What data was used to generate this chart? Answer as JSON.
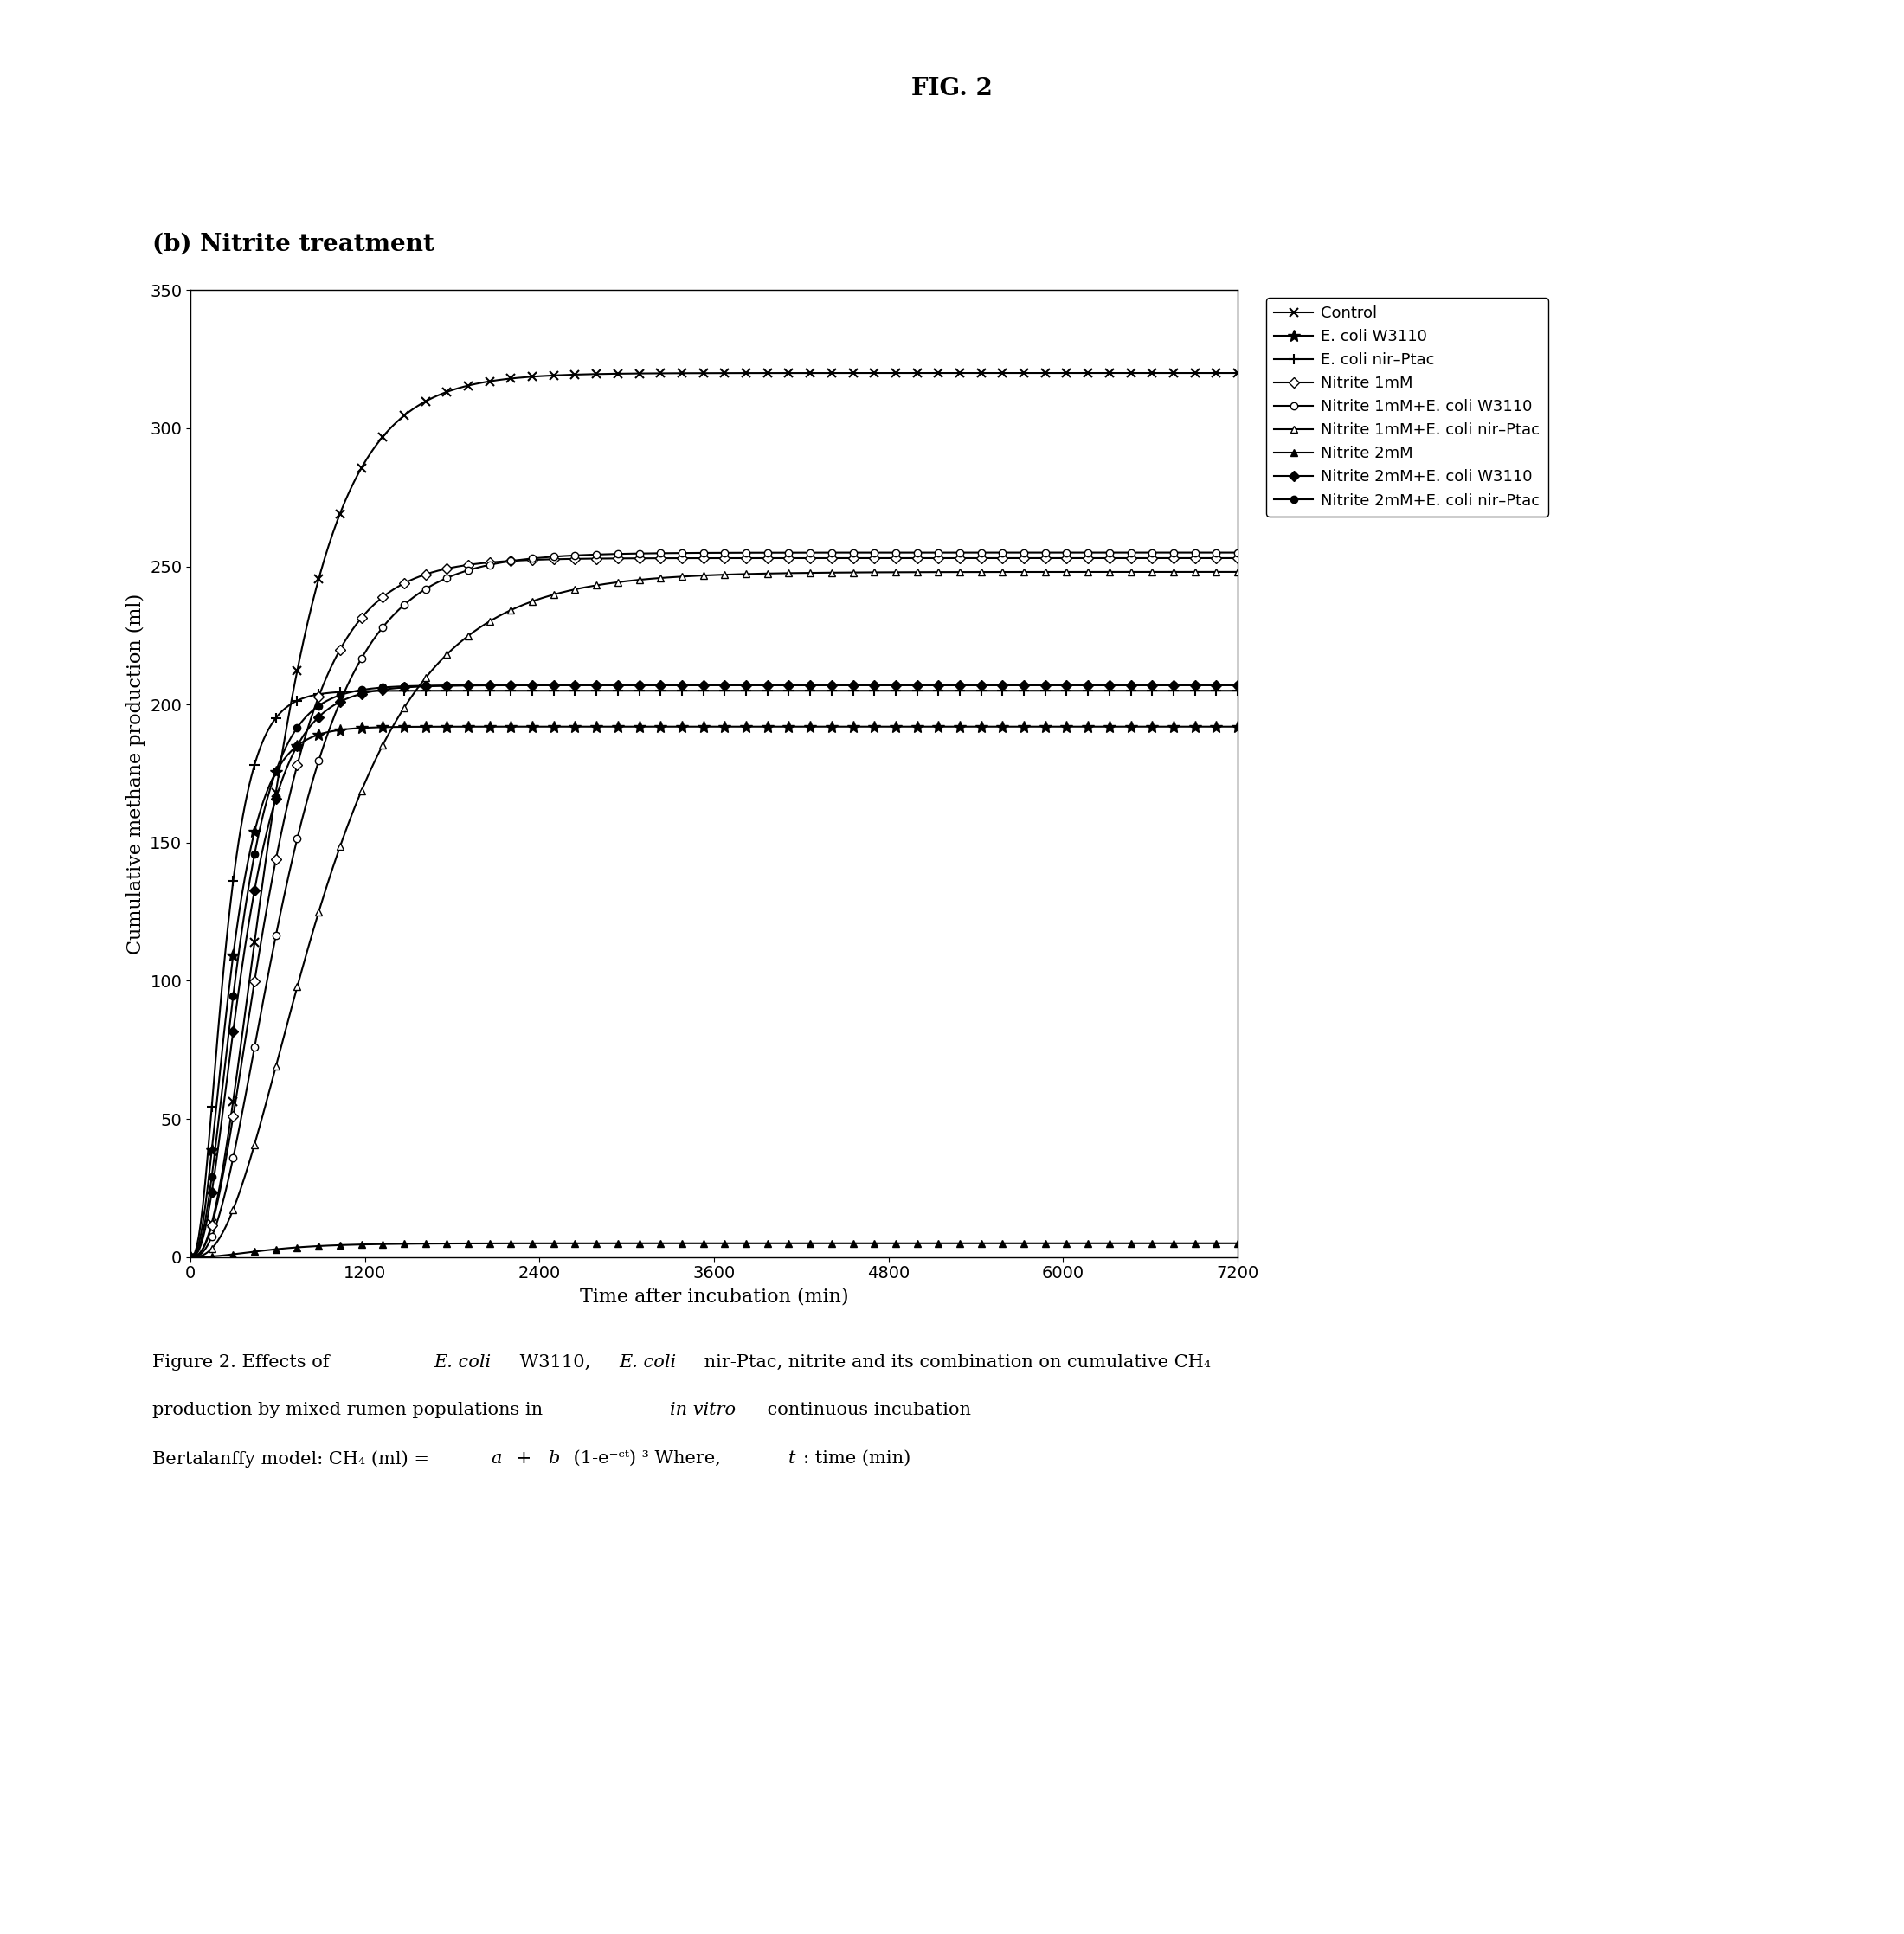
{
  "fig_title": "FIG. 2",
  "subtitle": "(b) Nitrite treatment",
  "xlabel": "Time after incubation (min)",
  "ylabel": "Cumulative methane production (ml)",
  "xlim": [
    0,
    7200
  ],
  "ylim": [
    0,
    350
  ],
  "xticks": [
    0,
    1200,
    2400,
    3600,
    4800,
    6000,
    7200
  ],
  "yticks": [
    0,
    50,
    100,
    150,
    200,
    250,
    300,
    350
  ],
  "caption_lines": [
    "Figure 2. Effects of {italic_start}E. coli{italic_end} W3110, {italic_start}E. coli{italic_end} nir-Ptac, nitrite and its combination on cumulative CH₄",
    "production by mixed rumen populations in {italic_start}in vitro{italic_end} continuous incubation",
    "Bertalanffy model: CH₄ (ml) = {italic_start}a{italic_end} + {italic_start}b{italic_end} (1-e⁻ᶜᵗ) ³ Where, {italic_start}t{italic_end}: time (min)"
  ],
  "series": [
    {
      "name": "Control",
      "a": 320,
      "b": 0,
      "c": 0.003,
      "plateau": 320,
      "marker": "x",
      "markersize": 7,
      "lw": 1.5
    },
    {
      "name": "E. coli W3110",
      "a": 192,
      "b": 0,
      "c": 0.005,
      "plateau": 192,
      "marker": "*",
      "markersize": 9,
      "lw": 1.5
    },
    {
      "name": "E. coli nir-Ptac",
      "a": 205,
      "b": 0,
      "c": 0.006,
      "plateau": 205,
      "marker": "P",
      "markersize": 7,
      "lw": 1.5
    },
    {
      "name": "Nitrite 1mM",
      "a": 253,
      "b": 0,
      "c": 0.003,
      "plateau": 253,
      "marker": "D",
      "markersize": 6,
      "lw": 1.5
    },
    {
      "name": "Nitrite 1mM+E. coli W3110",
      "a": 255,
      "b": 0,
      "c": 0.0025,
      "plateau": 255,
      "marker": "o",
      "markersize": 7,
      "lw": 1.5
    },
    {
      "name": "Nitrite 1mM+E. coli nir-Ptac",
      "a": 248,
      "b": 0,
      "c": 0.0018,
      "plateau": 248,
      "marker": "^",
      "markersize": 7,
      "lw": 1.5
    },
    {
      "name": "Nitrite 2mM",
      "a": 5,
      "b": 0,
      "c": 0.003,
      "plateau": 5,
      "marker": "^",
      "markersize": 7,
      "filled": true,
      "lw": 1.5
    },
    {
      "name": "Nitrite 2mM+E. coli W3110",
      "a": 207,
      "b": 0,
      "c": 0.004,
      "plateau": 207,
      "marker": "D",
      "markersize": 7,
      "filled": true,
      "lw": 1.5
    },
    {
      "name": "Nitrite 2mM+E. coli nir-Ptac",
      "a": 207,
      "b": 0,
      "c": 0.0045,
      "plateau": 207,
      "marker": "o",
      "markersize": 7,
      "filled": true,
      "lw": 1.5
    }
  ],
  "background_color": "#ffffff",
  "line_color": "#000000"
}
